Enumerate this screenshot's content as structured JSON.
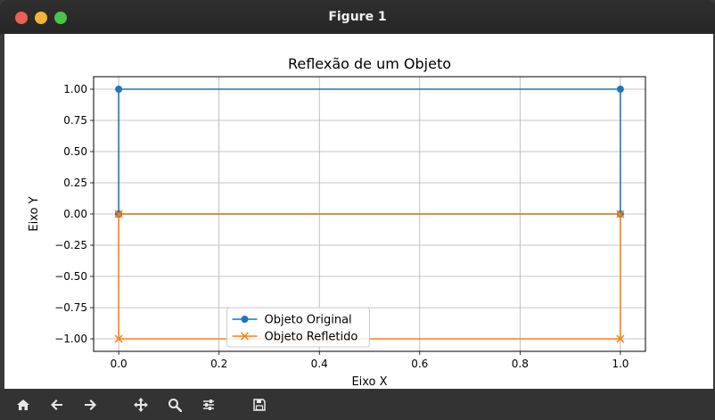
{
  "window": {
    "title": "Figure 1"
  },
  "toolbar": {
    "buttons": [
      {
        "name": "home-button",
        "icon": "home-icon"
      },
      {
        "name": "back-button",
        "icon": "arrow-left-icon"
      },
      {
        "name": "forward-button",
        "icon": "arrow-right-icon"
      },
      {
        "name": "pan-button",
        "icon": "move-icon"
      },
      {
        "name": "zoom-button",
        "icon": "magnifier-icon"
      },
      {
        "name": "configure-subplots-button",
        "icon": "sliders-icon"
      },
      {
        "name": "save-button",
        "icon": "floppy-disk-icon"
      }
    ]
  },
  "chart_data": {
    "type": "line",
    "title": "Reflexão de um Objeto",
    "xlabel": "Eixo X",
    "ylabel": "Eixo Y",
    "xlim": [
      -0.05,
      1.05
    ],
    "ylim": [
      -1.1,
      1.1
    ],
    "xticks": [
      0.0,
      0.2,
      0.4,
      0.6,
      0.8,
      1.0
    ],
    "xtick_labels": [
      "0.0",
      "0.2",
      "0.4",
      "0.6",
      "0.8",
      "1.0"
    ],
    "yticks": [
      -1.0,
      -0.75,
      -0.5,
      -0.25,
      0.0,
      0.25,
      0.5,
      0.75,
      1.0
    ],
    "ytick_labels": [
      "−1.00",
      "−0.75",
      "−0.50",
      "−0.25",
      "0.00",
      "0.25",
      "0.50",
      "0.75",
      "1.00"
    ],
    "grid": true,
    "legend_position": "bottom-center",
    "series": [
      {
        "name": "Objeto Original",
        "color": "#1f77b4",
        "marker": "circle",
        "x": [
          0,
          1,
          1,
          0,
          0
        ],
        "y": [
          0,
          0,
          1,
          1,
          0
        ]
      },
      {
        "name": "Objeto Refletido",
        "color": "#ff7f0e",
        "marker": "x",
        "x": [
          0,
          1,
          1,
          0,
          0
        ],
        "y": [
          0,
          0,
          -1,
          -1,
          0
        ]
      }
    ]
  }
}
